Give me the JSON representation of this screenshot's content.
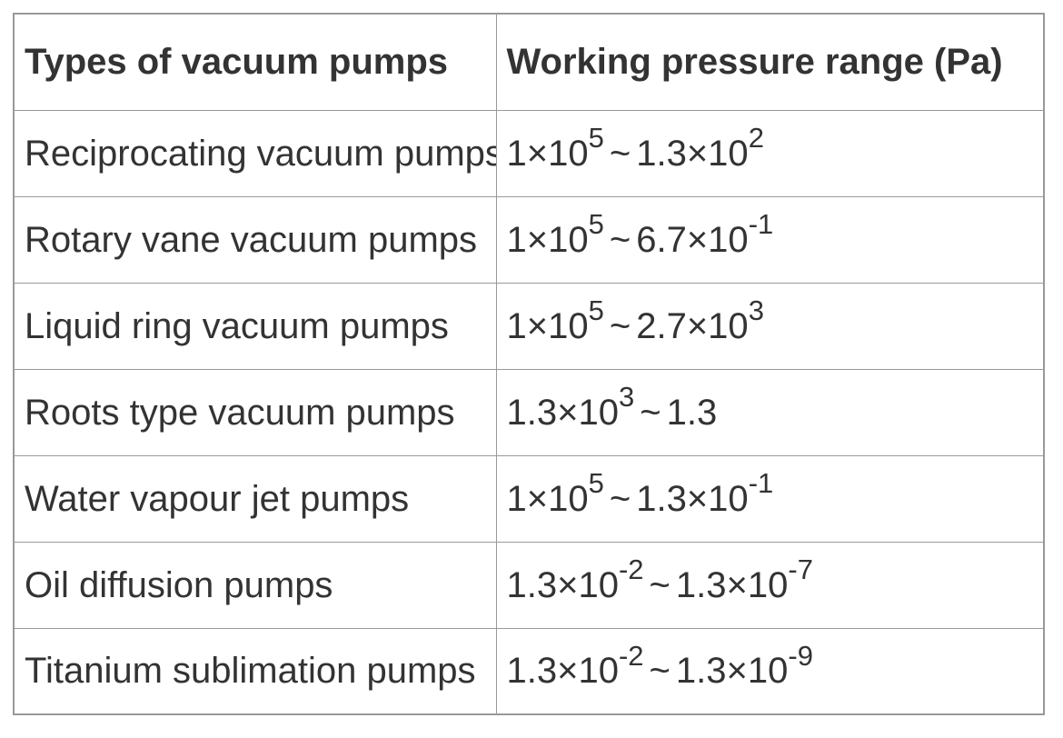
{
  "colors": {
    "border": "#999999",
    "text": "#333333",
    "cell_bg": "#ffffff"
  },
  "chart_data": {
    "type": "table",
    "columns": [
      "Types of vacuum pumps",
      "Working pressure range (Pa)"
    ],
    "range_separator": "~",
    "multiplication_sign": "×",
    "rows": [
      {
        "pump_type": "Reciprocating vacuum pumps",
        "pressure_range": "1×10^5 ~ 1.3×10^2",
        "low_base": "1×10",
        "low_exp": "5",
        "high_base": "1.3×10",
        "high_exp": "2"
      },
      {
        "pump_type": "Rotary vane vacuum pumps",
        "pressure_range": "1×10^5 ~ 6.7×10^-1",
        "low_base": "1×10",
        "low_exp": "5",
        "high_base": "6.7×10",
        "high_exp": "-1"
      },
      {
        "pump_type": "Liquid ring vacuum pumps",
        "pressure_range": "1×10^5 ~ 2.7×10^3",
        "low_base": "1×10",
        "low_exp": "5",
        "high_base": "2.7×10",
        "high_exp": "3"
      },
      {
        "pump_type": "Roots type vacuum pumps",
        "pressure_range": "1.3×10^3 ~ 1.3",
        "low_base": "1.3×10",
        "low_exp": "3",
        "high_base": "1.3",
        "high_exp": ""
      },
      {
        "pump_type": "Water vapour jet pumps",
        "pressure_range": "1×10^5 ~ 1.3×10^-1",
        "low_base": "1×10",
        "low_exp": "5",
        "high_base": "1.3×10",
        "high_exp": "-1"
      },
      {
        "pump_type": "Oil diffusion pumps",
        "pressure_range": "1.3×10^-2 ~ 1.3×10^-7",
        "low_base": "1.3×10",
        "low_exp": "-2",
        "high_base": "1.3×10",
        "high_exp": "-7"
      },
      {
        "pump_type": "Titanium sublimation pumps",
        "pressure_range": "1.3×10^-2 ~ 1.3×10^-9",
        "low_base": "1.3×10",
        "low_exp": "-2",
        "high_base": "1.3×10",
        "high_exp": "-9"
      }
    ]
  }
}
